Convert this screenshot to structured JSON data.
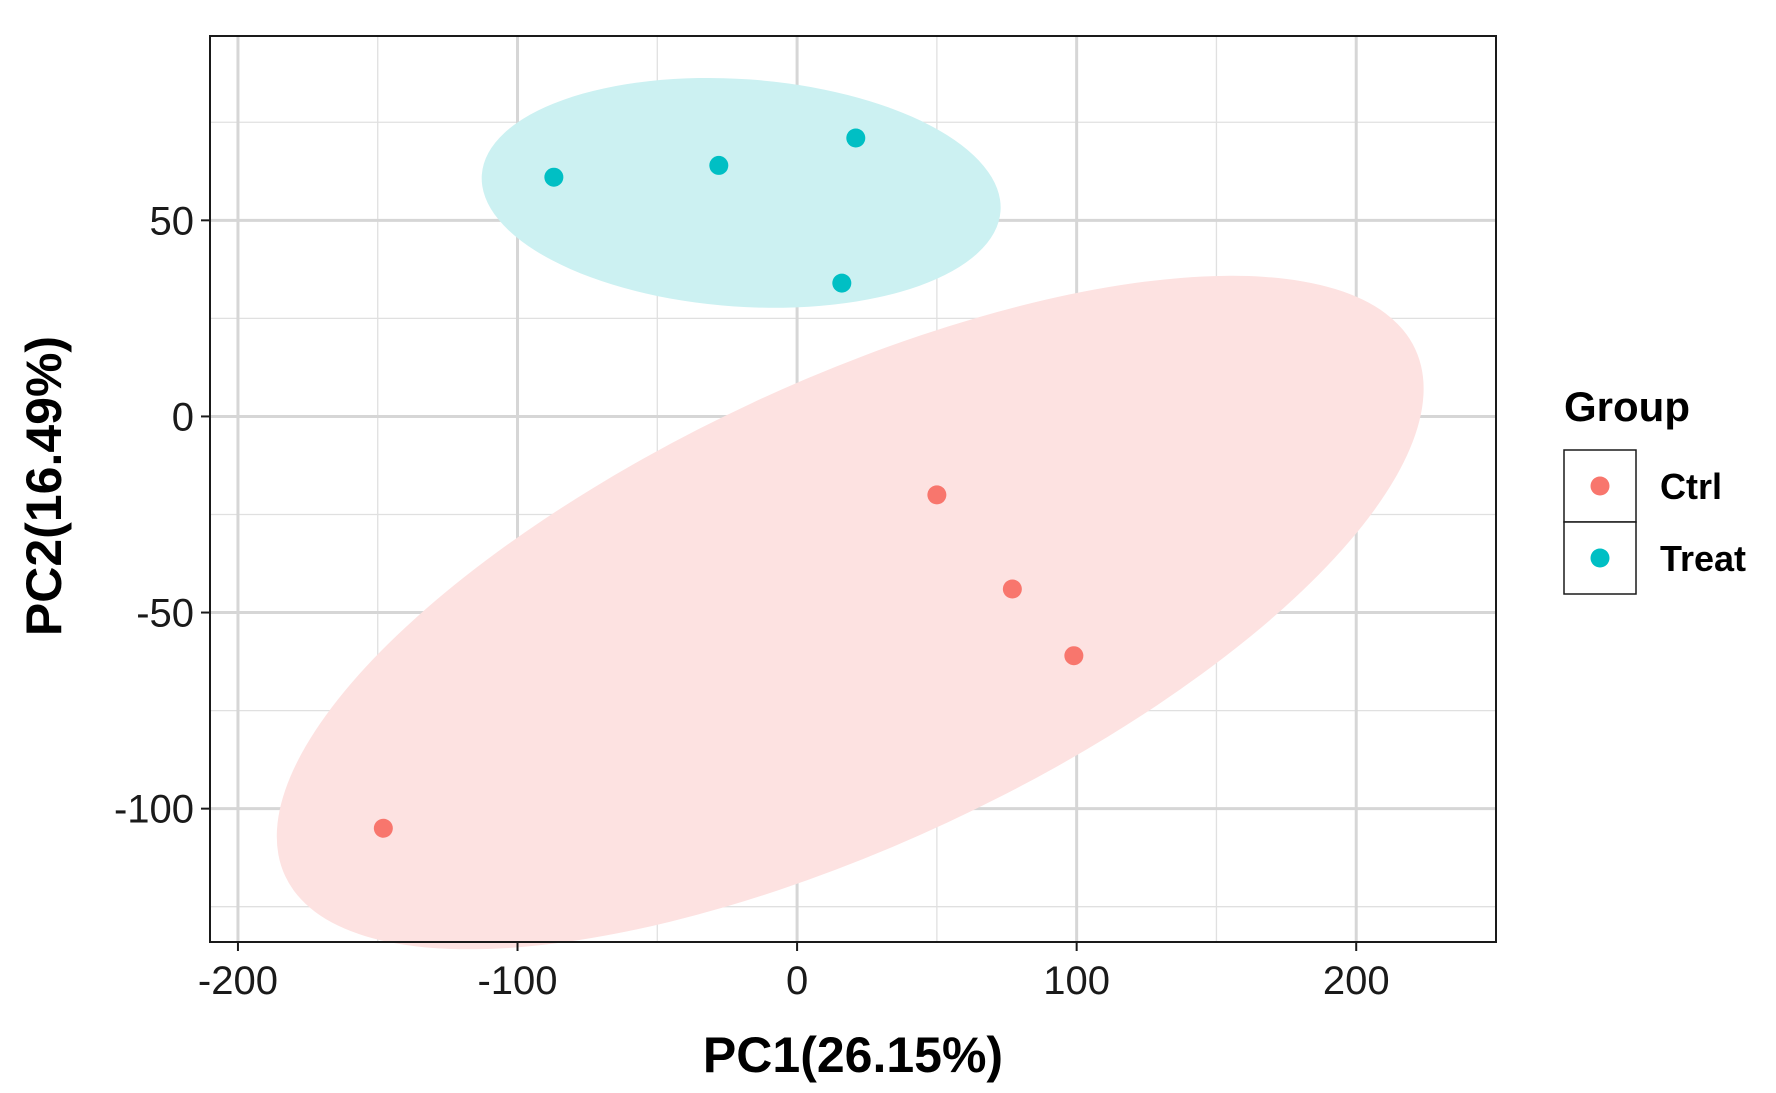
{
  "chart_data": {
    "type": "scatter",
    "title": "",
    "xlabel": "PC1(26.15%)",
    "ylabel": "PC2(16.49%)",
    "xlim": [
      -210,
      250
    ],
    "ylim": [
      -134,
      97
    ],
    "xticks": [
      -200,
      -100,
      0,
      100,
      200
    ],
    "xtick_labels": [
      "-200",
      "-100",
      "0",
      "100",
      "200"
    ],
    "yticks": [
      -100,
      -50,
      0,
      50
    ],
    "ytick_labels": [
      "-100",
      "-50",
      "0",
      "50"
    ],
    "minor_xticks": [
      -150,
      -50,
      50,
      150
    ],
    "minor_yticks": [
      -125,
      -75,
      -25,
      25,
      75
    ],
    "grid": true,
    "legend": {
      "title": "Group",
      "position": "right",
      "entries": [
        {
          "label": "Ctrl",
          "color": "#F8766D"
        },
        {
          "label": "Treat",
          "color": "#00BFC4"
        }
      ]
    },
    "series": [
      {
        "name": "Ctrl",
        "color": "#F8766D",
        "ellipse_fill": "#FDE2E1",
        "points": [
          [
            -148,
            -105
          ],
          [
            50,
            -20
          ],
          [
            77,
            -44
          ],
          [
            99,
            -61
          ]
        ],
        "ellipse": {
          "cx": 19,
          "cy": -50,
          "rx": 223,
          "ry": 59,
          "angle_deg": 25
        }
      },
      {
        "name": "Treat",
        "color": "#00BFC4",
        "ellipse_fill": "#CCF1F2",
        "points": [
          [
            -87,
            61
          ],
          [
            -28,
            64
          ],
          [
            21,
            71
          ],
          [
            16,
            34
          ]
        ],
        "ellipse": {
          "cx": -20,
          "cy": 57,
          "rx": 93,
          "ry": 29,
          "angle_deg": -4
        }
      }
    ]
  }
}
